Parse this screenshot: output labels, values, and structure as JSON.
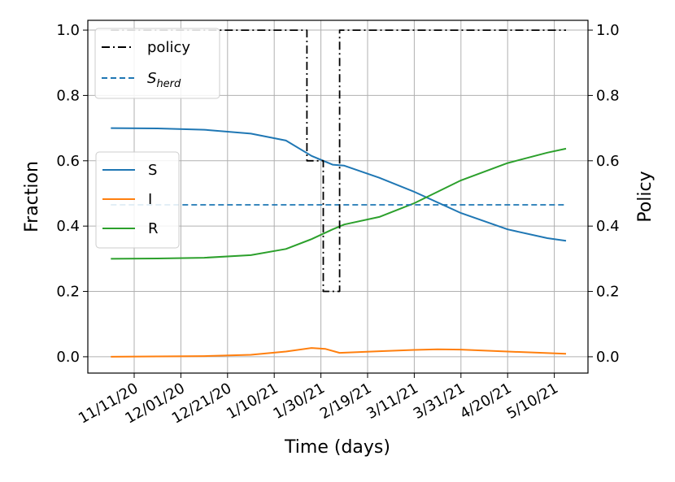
{
  "chart_data": {
    "type": "line",
    "xlabel": "Time (days)",
    "ylabel_left": "Fraction",
    "ylabel_right": "Policy",
    "x_tick_labels": [
      "11/11/20",
      "12/01/20",
      "12/21/20",
      "1/10/21",
      "1/30/21",
      "2/19/21",
      "3/11/21",
      "3/31/21",
      "4/20/21",
      "5/10/21"
    ],
    "y_tick_labels": [
      "0.0",
      "0.2",
      "0.4",
      "0.6",
      "0.8",
      "1.0"
    ],
    "y_right_tick_labels": [
      "0.0",
      "0.2",
      "0.4",
      "0.6",
      "0.8",
      "1.0"
    ],
    "ylim": [
      -0.05,
      1.03
    ],
    "grid": true,
    "legends": {
      "upper_left": [
        {
          "key": "policy",
          "label": "policy",
          "sub": ""
        },
        {
          "key": "sherd",
          "label": "S",
          "sub": "herd"
        }
      ],
      "center_left": [
        {
          "key": "S",
          "label": "S"
        },
        {
          "key": "I",
          "label": "I"
        },
        {
          "key": "R",
          "label": "R"
        }
      ]
    },
    "series": [
      {
        "key": "S",
        "axis": "left",
        "color": "#1f77b4",
        "style": "solid",
        "points": [
          [
            "2020-11-01",
            0.7
          ],
          [
            "2020-11-21",
            0.699
          ],
          [
            "2020-12-11",
            0.695
          ],
          [
            "2020-12-31",
            0.683
          ],
          [
            "2021-01-15",
            0.662
          ],
          [
            "2021-01-26",
            0.615
          ],
          [
            "2021-02-04",
            0.588
          ],
          [
            "2021-02-09",
            0.585
          ],
          [
            "2021-02-24",
            0.548
          ],
          [
            "2021-03-11",
            0.505
          ],
          [
            "2021-03-31",
            0.44
          ],
          [
            "2021-04-20",
            0.39
          ],
          [
            "2021-05-07",
            0.363
          ],
          [
            "2021-05-15",
            0.355
          ]
        ]
      },
      {
        "key": "I",
        "axis": "left",
        "color": "#ff7f0e",
        "style": "solid",
        "points": [
          [
            "2020-11-01",
            0.0
          ],
          [
            "2020-12-11",
            0.002
          ],
          [
            "2020-12-31",
            0.006
          ],
          [
            "2021-01-15",
            0.016
          ],
          [
            "2021-01-26",
            0.027
          ],
          [
            "2021-02-01",
            0.024
          ],
          [
            "2021-02-07",
            0.012
          ],
          [
            "2021-02-24",
            0.017
          ],
          [
            "2021-03-11",
            0.021
          ],
          [
            "2021-03-21",
            0.023
          ],
          [
            "2021-03-31",
            0.022
          ],
          [
            "2021-04-20",
            0.016
          ],
          [
            "2021-05-15",
            0.009
          ]
        ]
      },
      {
        "key": "R",
        "axis": "left",
        "color": "#2ca02c",
        "style": "solid",
        "points": [
          [
            "2020-11-01",
            0.3
          ],
          [
            "2020-11-21",
            0.301
          ],
          [
            "2020-12-11",
            0.303
          ],
          [
            "2020-12-31",
            0.311
          ],
          [
            "2021-01-15",
            0.33
          ],
          [
            "2021-01-26",
            0.36
          ],
          [
            "2021-02-04",
            0.39
          ],
          [
            "2021-02-09",
            0.405
          ],
          [
            "2021-02-24",
            0.428
          ],
          [
            "2021-03-11",
            0.47
          ],
          [
            "2021-03-31",
            0.54
          ],
          [
            "2021-04-20",
            0.593
          ],
          [
            "2021-05-07",
            0.625
          ],
          [
            "2021-05-15",
            0.637
          ]
        ]
      },
      {
        "key": "sherd",
        "axis": "left",
        "color": "#1f77b4",
        "style": "dashed",
        "points": [
          [
            "2020-11-01",
            0.465
          ],
          [
            "2021-05-15",
            0.465
          ]
        ]
      },
      {
        "key": "policy",
        "axis": "right",
        "color": "#000000",
        "style": "dashdot",
        "points": [
          [
            "2020-11-01",
            1.0
          ],
          [
            "2021-01-24",
            1.0
          ],
          [
            "2021-01-24",
            0.6
          ],
          [
            "2021-01-31",
            0.6
          ],
          [
            "2021-01-31",
            0.2
          ],
          [
            "2021-02-07",
            0.2
          ],
          [
            "2021-02-07",
            1.0
          ],
          [
            "2021-05-15",
            1.0
          ]
        ]
      }
    ]
  }
}
